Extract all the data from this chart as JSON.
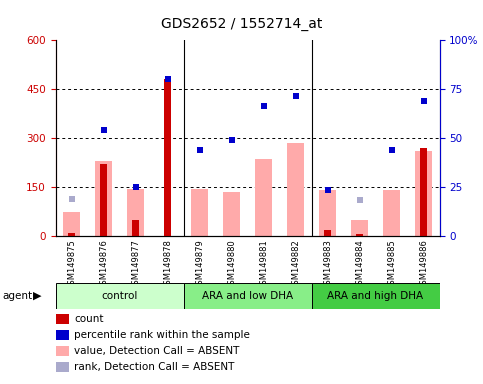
{
  "title": "GDS2652 / 1552714_at",
  "samples": [
    "GSM149875",
    "GSM149876",
    "GSM149877",
    "GSM149878",
    "GSM149879",
    "GSM149880",
    "GSM149881",
    "GSM149882",
    "GSM149883",
    "GSM149884",
    "GSM149885",
    "GSM149886"
  ],
  "count": [
    10,
    220,
    50,
    480,
    2,
    2,
    2,
    2,
    20,
    8,
    2,
    270
  ],
  "value_absent": [
    75,
    230,
    145,
    null,
    145,
    135,
    235,
    285,
    140,
    50,
    140,
    260
  ],
  "rank_absent": [
    115,
    null,
    null,
    null,
    null,
    null,
    null,
    null,
    null,
    110,
    null,
    null
  ],
  "percentile_rank": [
    null,
    325,
    150,
    480,
    265,
    295,
    400,
    430,
    140,
    null,
    265,
    415
  ],
  "ylim_left": [
    0,
    600
  ],
  "ylim_right": [
    0,
    100
  ],
  "yticks_left": [
    0,
    150,
    300,
    450,
    600
  ],
  "yticks_right": [
    0,
    25,
    50,
    75,
    100
  ],
  "ytick_labels_left": [
    "0",
    "150",
    "300",
    "450",
    "600"
  ],
  "ytick_labels_right": [
    "0",
    "25",
    "50",
    "75",
    "100%"
  ],
  "groups": [
    {
      "label": "control",
      "start": 0,
      "end": 4,
      "color": "#ccffcc"
    },
    {
      "label": "ARA and low DHA",
      "start": 4,
      "end": 8,
      "color": "#88ee88"
    },
    {
      "label": "ARA and high DHA",
      "start": 8,
      "end": 12,
      "color": "#44cc44"
    }
  ],
  "color_count": "#cc0000",
  "color_value_absent": "#ffaaaa",
  "color_percentile_rank": "#0000cc",
  "color_rank_absent": "#aaaacc",
  "legend_items": [
    {
      "color": "#cc0000",
      "label": "count"
    },
    {
      "color": "#0000cc",
      "label": "percentile rank within the sample"
    },
    {
      "color": "#ffaaaa",
      "label": "value, Detection Call = ABSENT"
    },
    {
      "color": "#aaaacc",
      "label": "rank, Detection Call = ABSENT"
    }
  ]
}
